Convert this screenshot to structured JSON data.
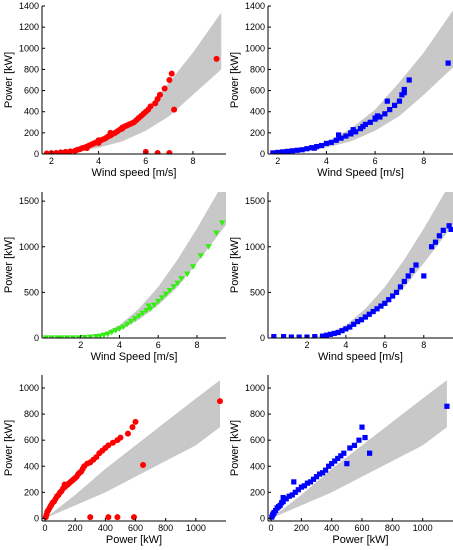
{
  "chart_data": [
    {
      "type": "scatter",
      "xlabel": "Wind speed [m/s]",
      "ylabel": "Power [kW]",
      "xlim": [
        1.6,
        9.4
      ],
      "ylim": [
        0,
        1400
      ],
      "xticks": [
        2,
        4,
        6,
        8
      ],
      "yticks": [
        0,
        200,
        400,
        600,
        800,
        1000,
        1200,
        1400
      ],
      "band": {
        "x": [
          1.6,
          3,
          4,
          5,
          6,
          7,
          8,
          9.2
        ],
        "lower": [
          0,
          20,
          60,
          120,
          220,
          360,
          560,
          800
        ],
        "upper": [
          0,
          40,
          110,
          240,
          420,
          680,
          960,
          1340
        ]
      },
      "series": [
        {
          "marker": "circle",
          "color": "#ff0000",
          "x": [
            1.8,
            2.0,
            2.2,
            2.4,
            2.6,
            2.8,
            3.0,
            3.1,
            3.2,
            3.3,
            3.4,
            3.5,
            3.5,
            3.6,
            3.7,
            3.8,
            3.9,
            4.0,
            4.0,
            4.1,
            4.2,
            4.3,
            4.4,
            4.5,
            4.5,
            4.6,
            4.7,
            4.8,
            4.9,
            5.0,
            5.0,
            5.1,
            5.2,
            5.3,
            5.4,
            5.5,
            5.6,
            5.7,
            5.8,
            5.9,
            6.0,
            6.1,
            6.2,
            6.4,
            6.5,
            6.6,
            6.8,
            7.0,
            7.1,
            4.0,
            6.0,
            6.5,
            7.2,
            7.0,
            9.0
          ],
          "y": [
            5,
            8,
            10,
            15,
            20,
            25,
            30,
            40,
            45,
            55,
            60,
            70,
            55,
            80,
            90,
            100,
            110,
            120,
            105,
            130,
            140,
            150,
            165,
            175,
            200,
            190,
            200,
            215,
            230,
            240,
            250,
            260,
            270,
            280,
            290,
            300,
            320,
            340,
            360,
            380,
            400,
            420,
            450,
            480,
            520,
            560,
            620,
            700,
            760,
            130,
            20,
            10,
            420,
            10,
            900
          ]
        }
      ]
    },
    {
      "type": "scatter",
      "xlabel": "Wind Speed [m/s]",
      "ylabel": "Power [kW]",
      "xlim": [
        1.6,
        9.2
      ],
      "ylim": [
        0,
        1400
      ],
      "xticks": [
        2,
        4,
        6,
        8
      ],
      "yticks": [
        0,
        200,
        400,
        600,
        800,
        1000,
        1200,
        1400
      ],
      "band": {
        "x": [
          1.6,
          3,
          4,
          5,
          6,
          7,
          8,
          9.2
        ],
        "lower": [
          0,
          20,
          60,
          120,
          220,
          360,
          560,
          820
        ],
        "upper": [
          0,
          40,
          110,
          240,
          420,
          680,
          960,
          1360
        ]
      },
      "series": [
        {
          "marker": "square",
          "color": "#0000ff",
          "x": [
            1.8,
            2.0,
            2.2,
            2.4,
            2.6,
            2.8,
            3.0,
            3.2,
            3.4,
            3.5,
            3.6,
            3.8,
            4.0,
            4.2,
            4.4,
            4.6,
            4.8,
            5.0,
            5.1,
            5.2,
            5.4,
            5.5,
            5.6,
            5.8,
            6.0,
            6.1,
            6.2,
            6.4,
            6.6,
            6.8,
            7.0,
            7.1,
            7.2,
            7.4,
            4.5,
            5.0,
            6.0,
            6.5,
            7.2,
            9.0
          ],
          "y": [
            10,
            15,
            20,
            25,
            30,
            35,
            40,
            50,
            60,
            55,
            70,
            80,
            100,
            110,
            130,
            150,
            170,
            190,
            230,
            210,
            240,
            260,
            280,
            300,
            340,
            360,
            350,
            380,
            420,
            460,
            500,
            560,
            610,
            700,
            180,
            200,
            330,
            500,
            580,
            860
          ]
        }
      ]
    },
    {
      "type": "scatter",
      "xlabel": "Wind Speed [m/s]",
      "ylabel": "Power [kW]",
      "xlim": [
        0,
        9.5
      ],
      "ylim": [
        0,
        1600
      ],
      "xticks": [
        2,
        4,
        6,
        8
      ],
      "yticks": [
        0,
        500,
        1000,
        1500
      ],
      "band": {
        "x": [
          0,
          2,
          3,
          4,
          5,
          6,
          7,
          8,
          9.5
        ],
        "lower": [
          0,
          0,
          20,
          80,
          200,
          360,
          560,
          820,
          1240
        ],
        "upper": [
          0,
          0,
          40,
          140,
          320,
          560,
          860,
          1200,
          1750
        ]
      },
      "series": [
        {
          "marker": "triangle-down",
          "color": "#33ee11",
          "x": [
            0.2,
            0.5,
            0.8,
            1.0,
            1.3,
            1.6,
            1.9,
            2.2,
            2.5,
            2.8,
            3.0,
            3.2,
            3.4,
            3.6,
            3.8,
            4.0,
            4.2,
            4.4,
            4.6,
            4.8,
            5.0,
            5.2,
            5.4,
            5.5,
            5.6,
            5.8,
            6.0,
            6.2,
            6.4,
            6.6,
            6.8,
            7.0,
            7.2,
            7.5,
            7.8,
            8.2,
            8.6,
            9.0,
            9.3
          ],
          "y": [
            0,
            0,
            0,
            0,
            0,
            0,
            0,
            5,
            10,
            15,
            20,
            30,
            40,
            60,
            80,
            100,
            120,
            150,
            180,
            210,
            240,
            270,
            300,
            350,
            320,
            360,
            400,
            440,
            480,
            520,
            560,
            600,
            650,
            700,
            780,
            900,
            1000,
            1150,
            1260
          ]
        }
      ]
    },
    {
      "type": "scatter",
      "xlabel": "Wind speed [m/s]",
      "ylabel": "Power [kW]",
      "xlim": [
        0,
        9.5
      ],
      "ylim": [
        0,
        1600
      ],
      "xticks": [
        2,
        4,
        6,
        8
      ],
      "yticks": [
        0,
        500,
        1000,
        1500
      ],
      "band": {
        "x": [
          0,
          2,
          3,
          4,
          5,
          6,
          7,
          8,
          9.5
        ],
        "lower": [
          0,
          0,
          20,
          80,
          200,
          360,
          560,
          820,
          1240
        ],
        "upper": [
          0,
          0,
          40,
          140,
          320,
          560,
          860,
          1200,
          1750
        ]
      },
      "series": [
        {
          "marker": "square",
          "color": "#0000ff",
          "x": [
            0.3,
            0.8,
            1.2,
            1.6,
            2.0,
            2.4,
            2.8,
            3.0,
            3.2,
            3.4,
            3.6,
            3.8,
            4.0,
            4.2,
            4.4,
            4.6,
            4.8,
            5.0,
            5.2,
            5.4,
            5.6,
            5.8,
            6.0,
            6.2,
            6.4,
            6.6,
            6.8,
            7.0,
            7.2,
            7.4,
            7.6,
            8.0,
            8.4,
            8.6,
            8.8,
            9.0,
            9.3,
            9.4
          ],
          "y": [
            15,
            15,
            10,
            10,
            10,
            15,
            20,
            30,
            40,
            50,
            60,
            80,
            100,
            120,
            150,
            180,
            200,
            230,
            260,
            290,
            320,
            350,
            380,
            420,
            460,
            500,
            560,
            620,
            680,
            740,
            800,
            680,
            1000,
            1050,
            1120,
            1180,
            1230,
            1190
          ]
        }
      ]
    },
    {
      "type": "scatter",
      "xlabel": "Power [kW]",
      "ylabel": "Power [kW]",
      "xlim": [
        -20,
        1200
      ],
      "ylim": [
        -20,
        1100
      ],
      "xticks": [
        0,
        200,
        400,
        600,
        800,
        1000
      ],
      "yticks": [
        0,
        200,
        400,
        600,
        800,
        1000
      ],
      "band": {
        "x": [
          0,
          200,
          400,
          600,
          800,
          1000,
          1160
        ],
        "lower": [
          0,
          100,
          200,
          320,
          440,
          560,
          700
        ],
        "upper": [
          0,
          180,
          380,
          560,
          740,
          920,
          1060
        ]
      },
      "series": [
        {
          "marker": "circle",
          "color": "#ff0000",
          "x": [
            5,
            10,
            15,
            20,
            30,
            40,
            50,
            60,
            70,
            80,
            90,
            100,
            110,
            120,
            130,
            140,
            150,
            160,
            170,
            180,
            190,
            200,
            210,
            220,
            230,
            240,
            250,
            260,
            280,
            300,
            320,
            340,
            360,
            380,
            400,
            420,
            450,
            480,
            500,
            550,
            580,
            600,
            650,
            130,
            150,
            300,
            420,
            480,
            590,
            1160
          ],
          "y": [
            10,
            30,
            50,
            60,
            80,
            100,
            120,
            130,
            150,
            170,
            180,
            200,
            210,
            230,
            240,
            250,
            260,
            270,
            280,
            290,
            300,
            310,
            320,
            340,
            350,
            360,
            380,
            400,
            420,
            430,
            450,
            470,
            500,
            520,
            540,
            560,
            580,
            600,
            620,
            650,
            700,
            740,
            410,
            260,
            260,
            10,
            10,
            10,
            10,
            900
          ]
        }
      ]
    },
    {
      "type": "scatter",
      "xlabel": "Power [kW]",
      "ylabel": "Power [kW]",
      "xlim": [
        -20,
        1200
      ],
      "ylim": [
        -20,
        1100
      ],
      "xticks": [
        0,
        200,
        400,
        600,
        800,
        1000
      ],
      "yticks": [
        0,
        200,
        400,
        600,
        800,
        1000
      ],
      "band": {
        "x": [
          0,
          200,
          400,
          600,
          800,
          1000,
          1160
        ],
        "lower": [
          0,
          100,
          200,
          320,
          440,
          560,
          700
        ],
        "upper": [
          0,
          180,
          380,
          560,
          740,
          920,
          1060
        ]
      },
      "series": [
        {
          "marker": "square",
          "color": "#0000ff",
          "x": [
            5,
            10,
            15,
            20,
            30,
            40,
            50,
            60,
            70,
            80,
            100,
            120,
            140,
            160,
            180,
            200,
            220,
            240,
            260,
            280,
            300,
            320,
            340,
            360,
            380,
            400,
            420,
            440,
            460,
            480,
            500,
            520,
            550,
            580,
            600,
            620,
            650,
            80,
            150,
            1160
          ],
          "y": [
            10,
            25,
            35,
            45,
            60,
            80,
            90,
            100,
            120,
            130,
            150,
            170,
            180,
            200,
            220,
            240,
            250,
            270,
            280,
            300,
            320,
            340,
            350,
            370,
            400,
            420,
            440,
            460,
            480,
            500,
            420,
            540,
            560,
            600,
            700,
            620,
            500,
            160,
            280,
            860
          ]
        }
      ]
    }
  ]
}
